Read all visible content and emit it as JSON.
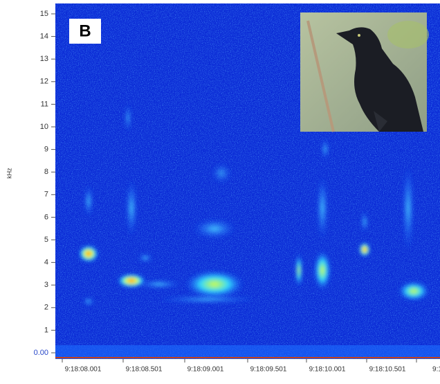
{
  "panel": {
    "label": "B"
  },
  "axes": {
    "y_label": "kHz",
    "y_ticks": [
      {
        "value": 0,
        "label": "0.00"
      },
      1,
      2,
      3,
      4,
      5,
      6,
      7,
      8,
      9,
      10,
      11,
      12,
      13,
      14,
      15
    ],
    "x_ticks": [
      "9:18:08.001",
      "9:18:08.501",
      "9:18:09.001",
      "9:18:09.501",
      "9:18:10.001",
      "9:18:10.501",
      "9:1"
    ]
  }
}
